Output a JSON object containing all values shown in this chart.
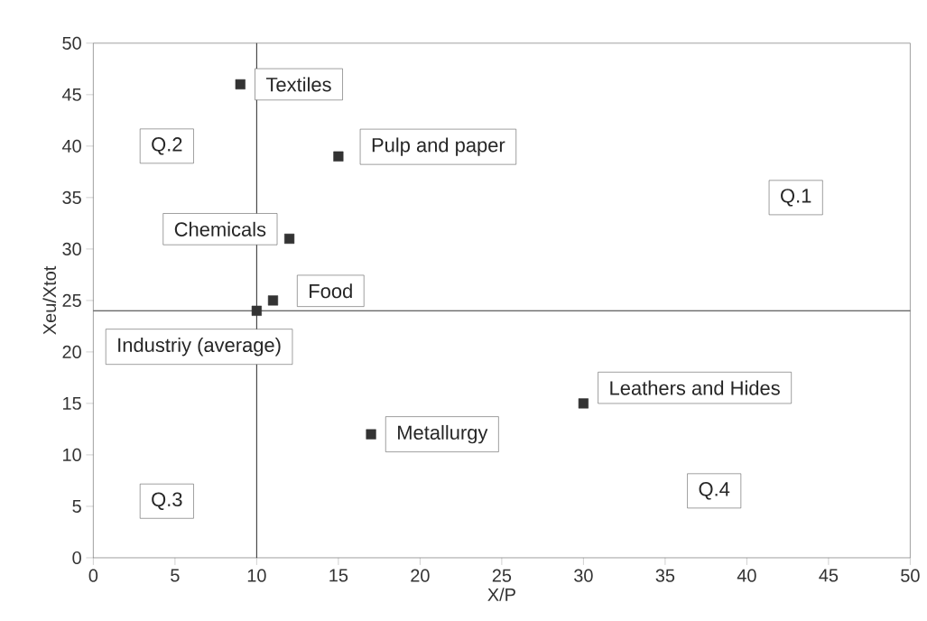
{
  "chart_data": {
    "type": "scatter",
    "xlabel": "X/P",
    "ylabel": "Xeu/Xtot",
    "x": [
      9,
      15,
      12,
      11,
      10,
      17,
      30
    ],
    "values": [
      46,
      39,
      31,
      25,
      24,
      12,
      15
    ],
    "color": "#333333",
    "marker": "square",
    "xlim": [
      0,
      50
    ],
    "ylim": [
      0,
      50
    ],
    "xticks": [
      0,
      5,
      10,
      15,
      20,
      25,
      30,
      35,
      40,
      45,
      50
    ],
    "yticks": [
      0,
      5,
      10,
      15,
      20,
      25,
      30,
      35,
      40,
      45,
      50
    ],
    "ref_lines": [
      {
        "axis": "x",
        "value": 10,
        "color": "#333333"
      },
      {
        "axis": "y",
        "value": 24,
        "color": "#333333"
      }
    ],
    "annotations": [
      {
        "text": "Textiles",
        "x": 9,
        "y": 46
      },
      {
        "text": "Pulp and paper",
        "x": 15,
        "y": 39
      },
      {
        "text": "Chemicals",
        "x": 12,
        "y": 31
      },
      {
        "text": "Food",
        "x": 11,
        "y": 25
      },
      {
        "text": "Industriy (average)",
        "x": 10,
        "y": 24
      },
      {
        "text": "Metallurgy",
        "x": 17,
        "y": 12
      },
      {
        "text": "Leathers and Hides",
        "x": 30,
        "y": 15
      },
      "Q.1",
      "Q.2",
      "Q.3",
      "Q.4"
    ]
  }
}
